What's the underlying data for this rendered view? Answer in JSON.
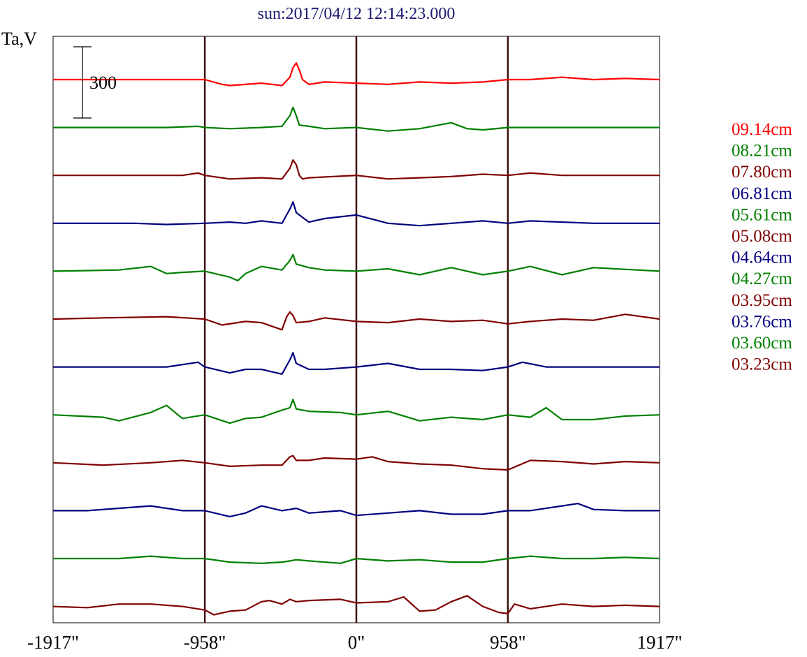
{
  "chart_data": {
    "type": "line",
    "title": "sun:2017/04/12 12:14:23.000",
    "ylabel": "Ta,V",
    "xlabel": "",
    "x_ticks": [
      {
        "value": -1917,
        "label": "-1917\""
      },
      {
        "value": -958,
        "label": "-958\""
      },
      {
        "value": 0,
        "label": "0\""
      },
      {
        "value": 958,
        "label": "958\""
      },
      {
        "value": 1917,
        "label": "1917\""
      }
    ],
    "xlim": [
      -1917,
      1917
    ],
    "scale_bar": {
      "value": 300,
      "label": "300"
    },
    "limb_markers": [
      -958,
      0,
      958
    ],
    "legend_placement": "right",
    "grid": false,
    "colors": {
      "red": "#ff0000",
      "green": "#008000",
      "maroon": "#800000",
      "navy": "#000080",
      "frame": "#000000",
      "marker": "#3a1010"
    },
    "series": [
      {
        "name": "09.14cm",
        "color": "#ff0000",
        "x": [
          -1917,
          -958,
          -850,
          -800,
          -600,
          -470,
          -420,
          -400,
          -380,
          -360,
          -340,
          -300,
          -200,
          0,
          200,
          400,
          600,
          800,
          958,
          1100,
          1300,
          1500,
          1700,
          1917
        ],
        "y": [
          0,
          0,
          -20,
          -25,
          -15,
          -25,
          10,
          50,
          70,
          40,
          0,
          -20,
          -10,
          -15,
          -20,
          -10,
          -15,
          -10,
          0,
          0,
          10,
          0,
          5,
          0
        ]
      },
      {
        "name": "08.21cm",
        "color": "#008000",
        "x": [
          -1917,
          -1200,
          -1000,
          -958,
          -800,
          -600,
          -470,
          -420,
          -400,
          -380,
          -360,
          -300,
          -200,
          0,
          200,
          400,
          600,
          700,
          800,
          958,
          1200,
          1500,
          1917
        ],
        "y": [
          0,
          0,
          5,
          0,
          -5,
          0,
          5,
          50,
          85,
          50,
          10,
          5,
          -5,
          0,
          -15,
          -5,
          20,
          -5,
          -10,
          0,
          0,
          0,
          0
        ]
      },
      {
        "name": "07.80cm",
        "color": "#800000",
        "x": [
          -1917,
          -1100,
          -1000,
          -958,
          -800,
          -600,
          -470,
          -420,
          -400,
          -380,
          -360,
          -340,
          -300,
          0,
          200,
          400,
          600,
          800,
          958,
          1100,
          1300,
          1700,
          1917
        ],
        "y": [
          0,
          0,
          10,
          0,
          -15,
          -10,
          -15,
          30,
          65,
          45,
          0,
          -15,
          -10,
          0,
          -15,
          -10,
          -5,
          5,
          0,
          10,
          0,
          0,
          0
        ]
      },
      {
        "name": "06.81cm",
        "color": "#000080",
        "x": [
          -1917,
          -1400,
          -1200,
          -958,
          -800,
          -700,
          -600,
          -470,
          -420,
          -400,
          -380,
          -300,
          -200,
          0,
          200,
          400,
          600,
          800,
          958,
          1100,
          1500,
          1917
        ],
        "y": [
          0,
          0,
          -5,
          0,
          5,
          0,
          10,
          0,
          60,
          90,
          45,
          5,
          20,
          35,
          0,
          -10,
          0,
          10,
          0,
          10,
          0,
          0
        ]
      },
      {
        "name": "05.61cm",
        "color": "#008000",
        "x": [
          -1917,
          -1500,
          -1300,
          -1200,
          -1100,
          -958,
          -800,
          -750,
          -700,
          -600,
          -470,
          -420,
          -400,
          -380,
          -300,
          -200,
          0,
          200,
          400,
          600,
          800,
          958,
          1100,
          1300,
          1500,
          1917
        ],
        "y": [
          0,
          5,
          20,
          -10,
          -5,
          0,
          -25,
          -40,
          -10,
          20,
          5,
          45,
          70,
          30,
          15,
          5,
          0,
          10,
          -15,
          15,
          -15,
          0,
          20,
          -15,
          15,
          0
        ]
      },
      {
        "name": "05.08cm",
        "color": "#800000",
        "x": [
          -1917,
          -1600,
          -1200,
          -958,
          -850,
          -700,
          -600,
          -470,
          -440,
          -420,
          -400,
          -380,
          -300,
          -200,
          0,
          200,
          400,
          600,
          800,
          958,
          1100,
          1300,
          1500,
          1700,
          1917
        ],
        "y": [
          0,
          5,
          10,
          0,
          -25,
          -10,
          -15,
          -45,
          10,
          30,
          15,
          -15,
          -10,
          5,
          -10,
          -15,
          0,
          -10,
          -5,
          -20,
          -10,
          0,
          -5,
          20,
          0
        ]
      },
      {
        "name": "04.64cm",
        "color": "#000080",
        "x": [
          -1917,
          -1200,
          -1000,
          -958,
          -800,
          -700,
          -600,
          -470,
          -420,
          -400,
          -380,
          -300,
          -200,
          0,
          200,
          400,
          600,
          800,
          958,
          1050,
          1200,
          1500,
          1917
        ],
        "y": [
          0,
          0,
          20,
          0,
          -25,
          -10,
          -10,
          -30,
          30,
          60,
          15,
          -10,
          -10,
          0,
          15,
          -10,
          -10,
          -15,
          0,
          20,
          0,
          0,
          0
        ]
      },
      {
        "name": "04.27cm",
        "color": "#008000",
        "x": [
          -1917,
          -1600,
          -1500,
          -1300,
          -1200,
          -1100,
          -958,
          -800,
          -700,
          -600,
          -470,
          -420,
          -400,
          -380,
          -300,
          -100,
          0,
          200,
          400,
          600,
          800,
          958,
          1100,
          1200,
          1300,
          1500,
          1700,
          1917
        ],
        "y": [
          0,
          -10,
          -25,
          10,
          40,
          -15,
          0,
          -35,
          -15,
          -10,
          20,
          30,
          65,
          25,
          15,
          10,
          0,
          15,
          -25,
          -10,
          -20,
          0,
          -10,
          30,
          -20,
          -20,
          -5,
          0
        ]
      },
      {
        "name": "03.95cm",
        "color": "#800000",
        "x": [
          -1917,
          -1600,
          -1300,
          -1100,
          -958,
          -800,
          -600,
          -470,
          -420,
          -400,
          -380,
          -300,
          -200,
          0,
          100,
          200,
          400,
          600,
          800,
          958,
          1100,
          1300,
          1500,
          1700,
          1917
        ],
        "y": [
          0,
          -10,
          0,
          10,
          0,
          -15,
          -10,
          -10,
          25,
          30,
          10,
          10,
          20,
          15,
          25,
          5,
          -5,
          -10,
          -25,
          -30,
          10,
          5,
          -5,
          5,
          0
        ]
      },
      {
        "name": "03.76cm",
        "color": "#000080",
        "x": [
          -1917,
          -1700,
          -1500,
          -1300,
          -1100,
          -958,
          -800,
          -700,
          -600,
          -470,
          -420,
          -380,
          -300,
          -200,
          -100,
          0,
          200,
          400,
          600,
          800,
          958,
          1100,
          1300,
          1400,
          1500,
          1700,
          1917
        ],
        "y": [
          0,
          0,
          10,
          20,
          0,
          0,
          -25,
          -10,
          20,
          0,
          5,
          10,
          -10,
          -5,
          0,
          -20,
          -10,
          0,
          -15,
          -15,
          0,
          0,
          20,
          30,
          5,
          0,
          0
        ]
      },
      {
        "name": "03.60cm",
        "color": "#008000",
        "x": [
          -1917,
          -1500,
          -1300,
          -1100,
          -958,
          -800,
          -600,
          -470,
          -420,
          -380,
          -300,
          -100,
          0,
          200,
          400,
          600,
          800,
          958,
          1100,
          1300,
          1500,
          1700,
          1917
        ],
        "y": [
          0,
          0,
          10,
          0,
          0,
          -15,
          -20,
          -15,
          -10,
          -5,
          -10,
          -20,
          0,
          -10,
          -5,
          -15,
          -15,
          0,
          10,
          0,
          0,
          5,
          0
        ]
      },
      {
        "name": "03.23cm",
        "color": "#800000",
        "x": [
          -1917,
          -1700,
          -1500,
          -1300,
          -1100,
          -958,
          -900,
          -800,
          -700,
          -600,
          -550,
          -470,
          -420,
          -380,
          -300,
          -100,
          0,
          200,
          300,
          400,
          500,
          600,
          700,
          800,
          900,
          958,
          1000,
          1100,
          1300,
          1500,
          1700,
          1917
        ],
        "y": [
          0,
          -5,
          10,
          10,
          0,
          -15,
          -35,
          -20,
          -15,
          20,
          25,
          10,
          30,
          20,
          25,
          30,
          15,
          20,
          40,
          -20,
          -15,
          20,
          45,
          0,
          -25,
          -30,
          10,
          -10,
          10,
          0,
          5,
          0
        ]
      }
    ]
  }
}
